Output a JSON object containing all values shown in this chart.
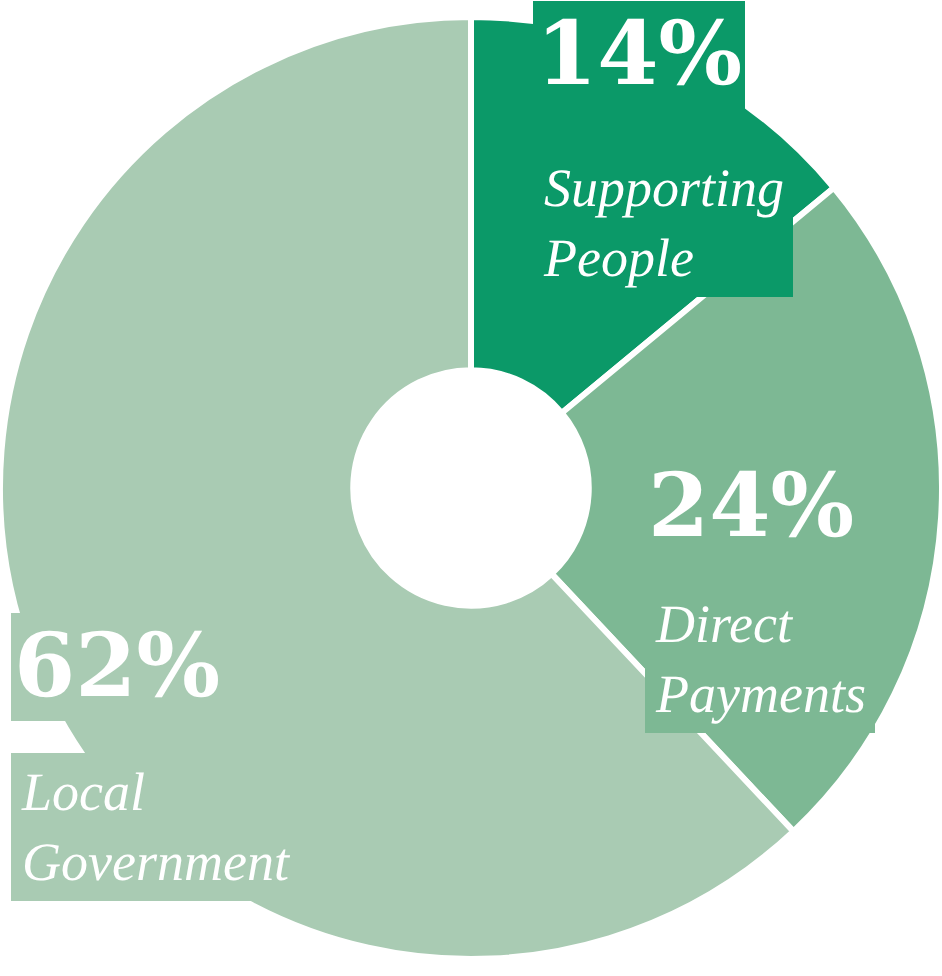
{
  "chart_data": {
    "type": "donut",
    "categories": [
      "Supporting People",
      "Direct Payments",
      "Local Government"
    ],
    "values": [
      14,
      24,
      62
    ],
    "colors": [
      "#0b9968",
      "#7db894",
      "#a9cbb3"
    ],
    "value_labels": [
      "14%",
      "24%",
      "62%"
    ]
  }
}
